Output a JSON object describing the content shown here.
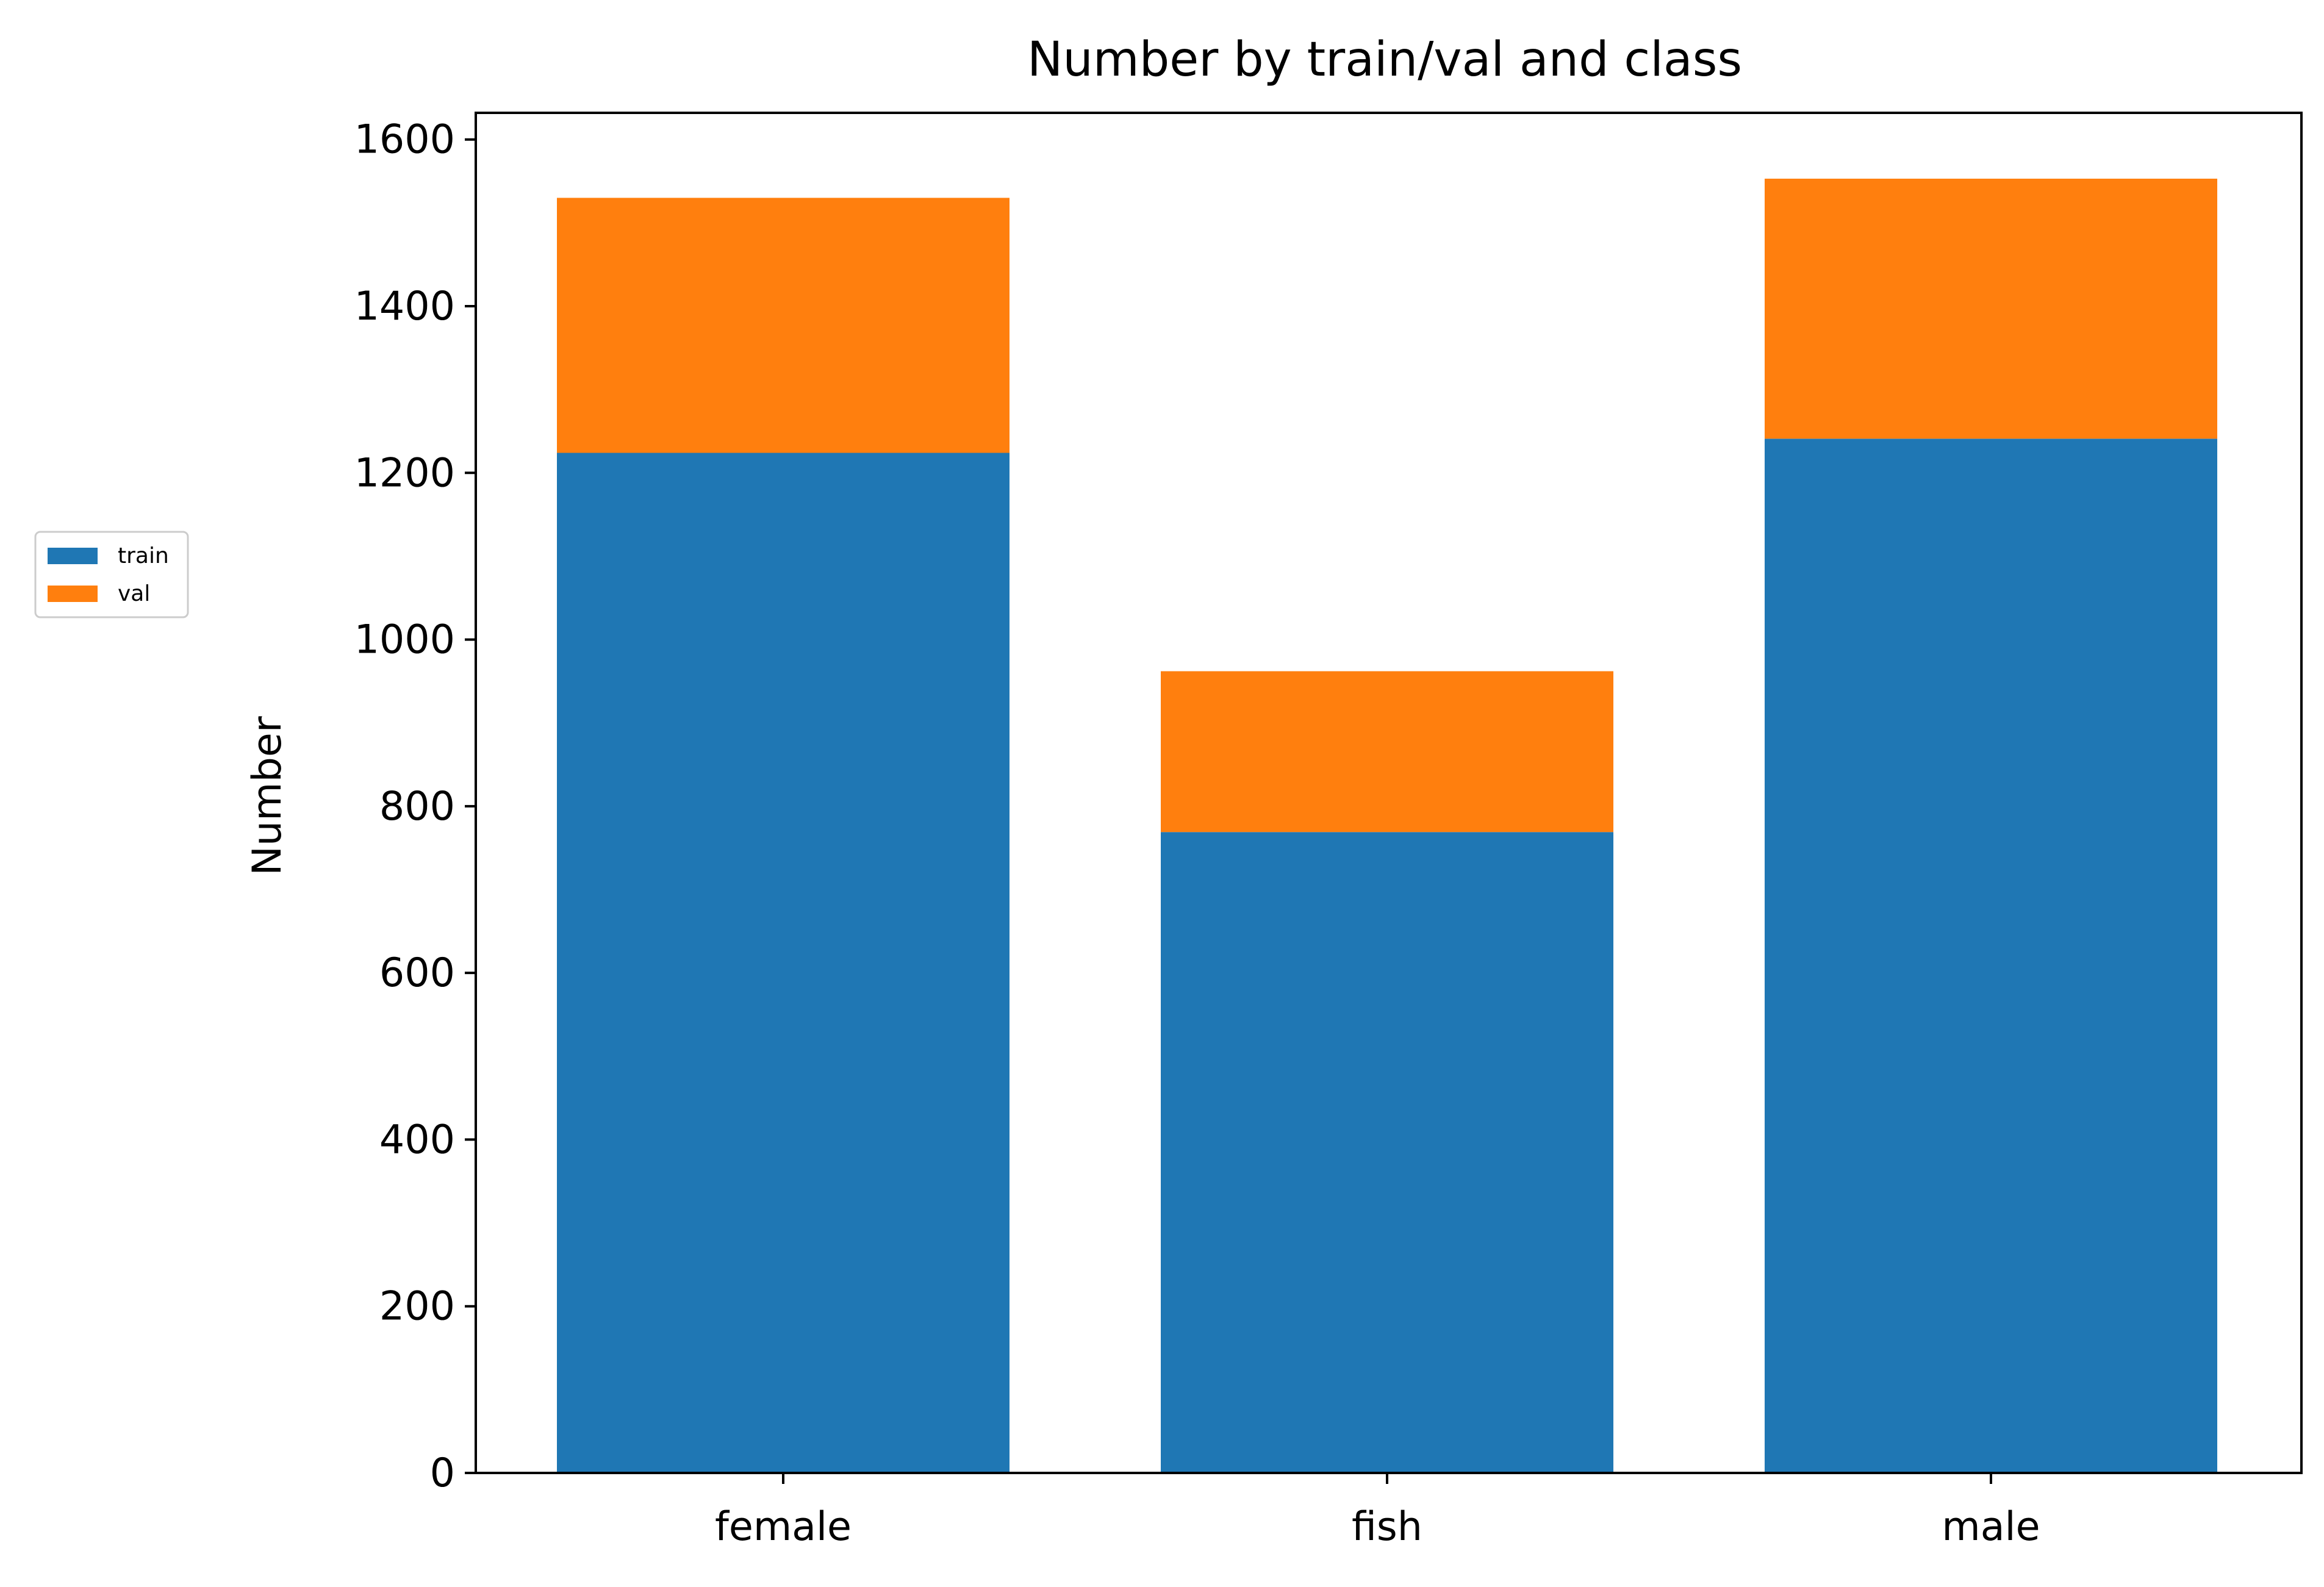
{
  "chart_data": {
    "type": "bar",
    "stacked": true,
    "title": "Number by train/val and class",
    "xlabel": "",
    "ylabel": "Number",
    "categories": [
      "female",
      "fish",
      "male"
    ],
    "series": [
      {
        "name": "train",
        "values": [
          1224,
          769,
          1241
        ],
        "color": "#1f77b4"
      },
      {
        "name": "val",
        "values": [
          306,
          193,
          312
        ],
        "color": "#ff7f0e"
      }
    ],
    "ylim": [
      0,
      1632
    ],
    "yticks": [
      0,
      200,
      400,
      600,
      800,
      1000,
      1200,
      1400,
      1600
    ],
    "grid": false,
    "legend_position": "left"
  }
}
